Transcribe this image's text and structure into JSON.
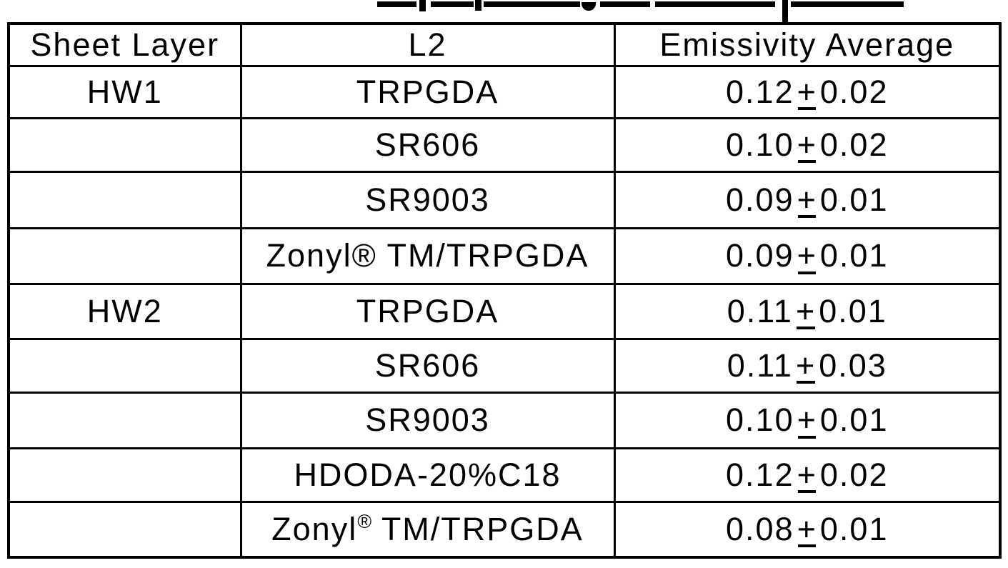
{
  "table": {
    "columns": [
      "Sheet Layer",
      "L2",
      "Emissivity Average"
    ],
    "pm_symbol": "+",
    "rows": [
      {
        "sheet_layer": "HW1",
        "l2_pre": "TRPGDA",
        "l2_reg": "",
        "l2_sup": false,
        "l2_post": "",
        "mean": "0.12",
        "err": "0.02"
      },
      {
        "sheet_layer": "",
        "l2_pre": "SR606",
        "l2_reg": "",
        "l2_sup": false,
        "l2_post": "",
        "mean": "0.10",
        "err": "0.02"
      },
      {
        "sheet_layer": "",
        "l2_pre": "SR9003",
        "l2_reg": "",
        "l2_sup": false,
        "l2_post": "",
        "mean": "0.09",
        "err": "0.01"
      },
      {
        "sheet_layer": "",
        "l2_pre": "Zonyl",
        "l2_reg": "®",
        "l2_sup": false,
        "l2_post": " TM/TRPGDA",
        "mean": "0.09",
        "err": "0.01"
      },
      {
        "sheet_layer": "HW2",
        "l2_pre": "TRPGDA",
        "l2_reg": "",
        "l2_sup": false,
        "l2_post": "",
        "mean": "0.11",
        "err": "0.01"
      },
      {
        "sheet_layer": "",
        "l2_pre": "SR606",
        "l2_reg": "",
        "l2_sup": false,
        "l2_post": "",
        "mean": "0.11",
        "err": "0.03"
      },
      {
        "sheet_layer": "",
        "l2_pre": "SR9003",
        "l2_reg": "",
        "l2_sup": false,
        "l2_post": "",
        "mean": "0.10",
        "err": "0.01"
      },
      {
        "sheet_layer": "",
        "l2_pre": "HDODA-20%C18",
        "l2_reg": "",
        "l2_sup": false,
        "l2_post": "",
        "mean": "0.12",
        "err": "0.02"
      },
      {
        "sheet_layer": "",
        "l2_pre": "Zonyl",
        "l2_reg": "®",
        "l2_sup": true,
        "l2_post": " TM/TRPGDA",
        "mean": "0.08",
        "err": "0.01"
      }
    ]
  }
}
